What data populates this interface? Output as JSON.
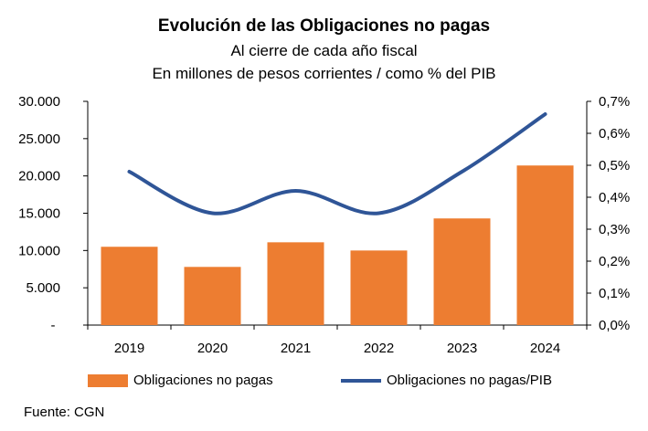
{
  "chart_data": {
    "type": "bar+line",
    "title": "Evolución de las Obligaciones no pagas",
    "subtitle_1": "Al cierre de cada año fiscal",
    "subtitle_2": "En millones de pesos corrientes / como % del PIB",
    "categories": [
      "2019",
      "2020",
      "2021",
      "2022",
      "2023",
      "2024"
    ],
    "series": [
      {
        "name": "Obligaciones no pagas",
        "type": "bar",
        "axis": "left",
        "color": "#ED7D31",
        "values": [
          10500,
          7800,
          11100,
          10000,
          14300,
          21400
        ]
      },
      {
        "name": "Obligaciones no pagas/PIB",
        "type": "line",
        "axis": "right",
        "color": "#2F5597",
        "values": [
          0.48,
          0.35,
          0.42,
          0.35,
          0.48,
          0.66
        ]
      }
    ],
    "y_left": {
      "min": 0,
      "max": 30000,
      "ticks": [
        "-",
        "5.000",
        "10.000",
        "15.000",
        "20.000",
        "25.000",
        "30.000"
      ]
    },
    "y_right": {
      "min": 0,
      "max": 0.7,
      "ticks": [
        "0,0%",
        "0,1%",
        "0,2%",
        "0,3%",
        "0,4%",
        "0,5%",
        "0,6%",
        "0,7%"
      ]
    },
    "grid": false,
    "legend_position": "bottom"
  },
  "source": "Fuente: CGN"
}
